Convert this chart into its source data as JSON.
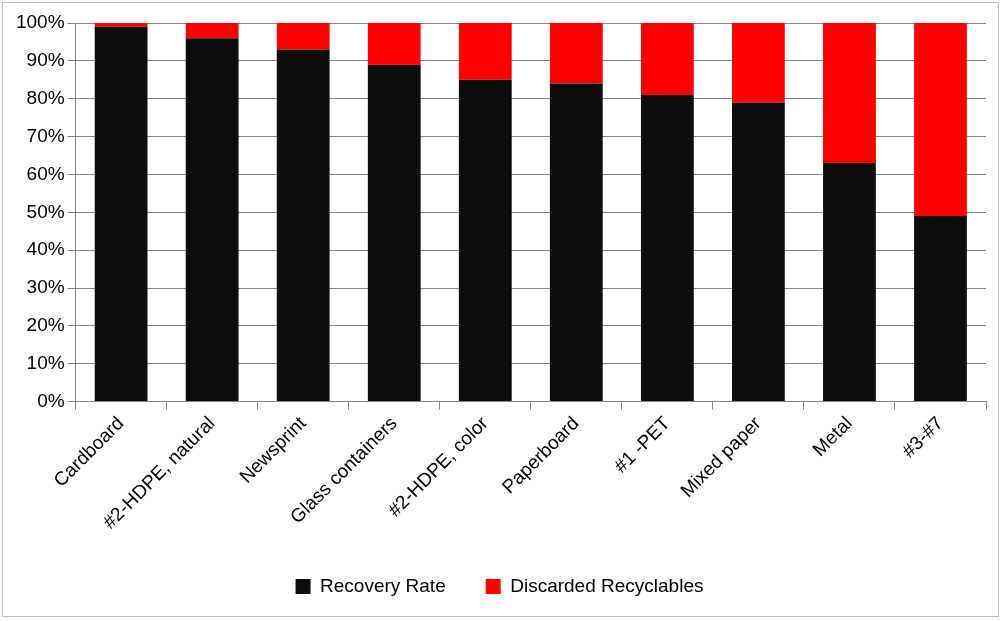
{
  "chart_data": {
    "type": "bar",
    "stacked": true,
    "categories": [
      "Cardboard",
      "#2-HDPE, natural",
      "Newsprint",
      "Glass containers",
      "#2-HDPE, color",
      "Paperboard",
      "#1 -PET",
      "Mixed paper",
      "Metal",
      "#3-#7"
    ],
    "series": [
      {
        "name": "Recovery Rate",
        "color": "#0d0d0d",
        "values": [
          99,
          96,
          93,
          89,
          85,
          84,
          81,
          79,
          63,
          49
        ]
      },
      {
        "name": "Discarded Recyclables",
        "color": "#ff0000",
        "values": [
          1,
          4,
          7,
          11,
          15,
          16,
          19,
          21,
          37,
          51
        ]
      }
    ],
    "ylim": [
      0,
      100
    ],
    "yticks": [
      {
        "value": 0,
        "label": "0%"
      },
      {
        "value": 10,
        "label": "10%"
      },
      {
        "value": 20,
        "label": "20%"
      },
      {
        "value": 30,
        "label": "30%"
      },
      {
        "value": 40,
        "label": "40%"
      },
      {
        "value": 50,
        "label": "50%"
      },
      {
        "value": 60,
        "label": "60%"
      },
      {
        "value": 70,
        "label": "70%"
      },
      {
        "value": 80,
        "label": "80%"
      },
      {
        "value": 90,
        "label": "90%"
      },
      {
        "value": 100,
        "label": "100%"
      }
    ],
    "grid": "y",
    "legend": "bottom"
  }
}
